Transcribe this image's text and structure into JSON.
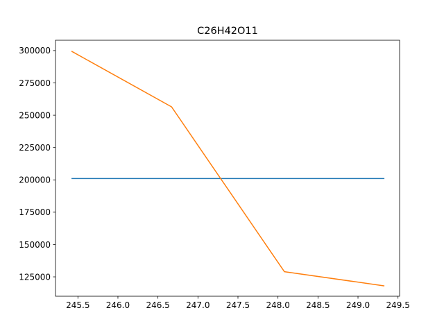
{
  "chart_data": {
    "type": "line",
    "title": "C26H42O11",
    "xlabel": "",
    "ylabel": "",
    "xlim": [
      245.22,
      249.52
    ],
    "ylim": [
      110000,
      308000
    ],
    "x_ticks": [
      245.5,
      246.0,
      246.5,
      247.0,
      247.5,
      248.0,
      248.5,
      249.0,
      249.5
    ],
    "x_tick_labels": [
      "245.5",
      "246.0",
      "246.5",
      "247.0",
      "247.5",
      "248.0",
      "248.5",
      "249.0",
      "249.5"
    ],
    "y_ticks": [
      125000,
      150000,
      175000,
      200000,
      225000,
      250000,
      275000,
      300000
    ],
    "y_tick_labels": [
      "125000",
      "150000",
      "175000",
      "200000",
      "225000",
      "250000",
      "275000",
      "300000"
    ],
    "grid": false,
    "series": [
      {
        "color": "#1f77b4",
        "x": [
          245.42,
          249.33
        ],
        "y": [
          201000,
          201000
        ]
      },
      {
        "color": "#ff7f0e",
        "x": [
          245.42,
          246.67,
          248.08,
          249.33
        ],
        "y": [
          299500,
          256500,
          129000,
          118000
        ]
      }
    ]
  }
}
